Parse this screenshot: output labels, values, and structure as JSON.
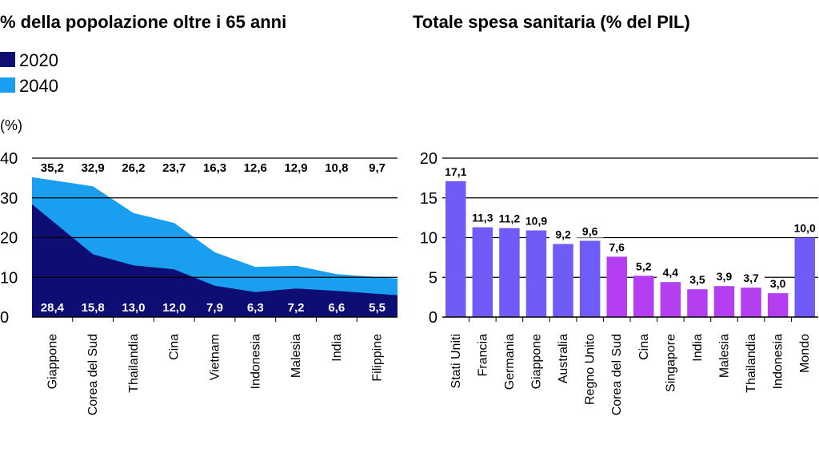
{
  "chart_data": [
    {
      "type": "area",
      "title": "% della popolazione oltre i 65 anni",
      "unit_label": "(%)",
      "categories": [
        "Giappone",
        "Corea del Sud",
        "Thailandia",
        "Cina",
        "Vietnam",
        "Indonesia",
        "Malesia",
        "India",
        "Filippine"
      ],
      "series": [
        {
          "name": "2020",
          "values": [
            28.4,
            15.8,
            13.0,
            12.0,
            7.9,
            6.3,
            7.2,
            6.6,
            5.5
          ],
          "labels": [
            "28,4",
            "15,8",
            "13,0",
            "12,0",
            "7,9",
            "6,3",
            "7,2",
            "6,6",
            "5,5"
          ],
          "color": "#0d0d73"
        },
        {
          "name": "2040",
          "values": [
            35.2,
            32.9,
            26.2,
            23.7,
            16.3,
            12.6,
            12.9,
            10.8,
            9.7
          ],
          "labels": [
            "35,2",
            "32,9",
            "26,2",
            "23,7",
            "16,3",
            "12,6",
            "12,9",
            "10,8",
            "9,7"
          ],
          "color": "#1a9ff0"
        }
      ],
      "ylim": [
        0,
        40
      ],
      "yticks": [
        "0",
        "10",
        "20",
        "30",
        "40"
      ],
      "grid": true,
      "legend_position": "top-left"
    },
    {
      "type": "bar",
      "title": "Totale spesa sanitaria (% del PIL)",
      "categories": [
        "Stati Uniti",
        "Francia",
        "Germania",
        "Giappone",
        "Australia",
        "Regno Unito",
        "Corea del Sud",
        "Cina",
        "Singapore",
        "India",
        "Malesia",
        "Thailandia",
        "Indonesia",
        "Mondo"
      ],
      "values": [
        17.1,
        11.3,
        11.2,
        10.9,
        9.2,
        9.6,
        7.6,
        5.2,
        4.4,
        3.5,
        3.9,
        3.7,
        3.0,
        10.0
      ],
      "labels": [
        "17,1",
        "11,3",
        "11,2",
        "10,9",
        "9,2",
        "9,6",
        "7,6",
        "5,2",
        "4,4",
        "3,5",
        "3,9",
        "3,7",
        "3,0",
        "10,0"
      ],
      "group": [
        "developed",
        "developed",
        "developed",
        "developed",
        "developed",
        "developed",
        "asia",
        "asia",
        "asia",
        "asia",
        "asia",
        "asia",
        "asia",
        "developed"
      ],
      "colors": {
        "developed": "#6f5cf6",
        "asia": "#b43ff0"
      },
      "ylim": [
        0,
        20
      ],
      "yticks": [
        "0",
        "5",
        "10",
        "15",
        "20"
      ],
      "grid": true
    }
  ]
}
